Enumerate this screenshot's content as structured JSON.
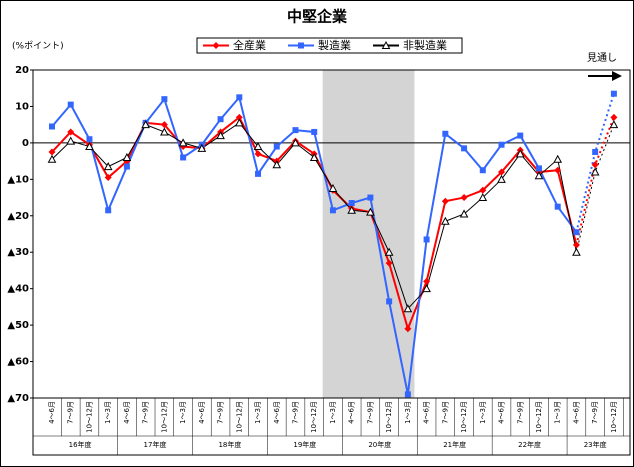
{
  "chart_data": {
    "type": "line",
    "title": "中堅企業",
    "y_label": "(%ポイント)",
    "annotation": "見通し",
    "categories": [
      "4～6月",
      "7～9月",
      "10～12月",
      "1～3月",
      "4～6月",
      "7～9月",
      "10～12月",
      "1～3月",
      "4～6月",
      "7～9月",
      "10～12月",
      "1～3月",
      "4～6月",
      "7～9月",
      "10～12月",
      "1～3月",
      "4～6月",
      "7～9月",
      "10～12月",
      "1～3月",
      "4～6月",
      "7～9月",
      "10～12月",
      "1～3月",
      "4～6月",
      "7～9月",
      "10～12月",
      "1～3月",
      "4～6月",
      "7～9月",
      "10～12月"
    ],
    "year_labels": [
      "16年度",
      "17年度",
      "18年度",
      "19年度",
      "20年度",
      "21年度",
      "22年度",
      "23年度"
    ],
    "series": [
      {
        "name": "全産業",
        "color": "#ff0000",
        "marker": "diamond",
        "values": [
          -2.5,
          3,
          -0.5,
          -9.5,
          -5,
          5.5,
          5,
          -1,
          -1.5,
          3,
          7,
          -3,
          -5,
          0.5,
          -3,
          -13,
          -18,
          -19,
          -33,
          -51,
          -38,
          -16,
          -15,
          -13,
          -8,
          -2,
          -8,
          -7.5,
          -28,
          -6,
          7
        ]
      },
      {
        "name": "製造業",
        "color": "#3366ff",
        "marker": "square",
        "values": [
          4.5,
          10.5,
          1,
          -18.5,
          -6.5,
          5.5,
          12,
          -4,
          -0.5,
          6.5,
          12.5,
          -8.5,
          -1,
          3.5,
          3,
          -18.5,
          -16.5,
          -15,
          -43.5,
          -69,
          -26.5,
          2.5,
          -1.5,
          -7.5,
          -0.5,
          2,
          -7,
          -17.5,
          -24.5,
          -2.5,
          13.5
        ]
      },
      {
        "name": "非製造業",
        "color": "#000000",
        "marker": "triangle",
        "values": [
          -4.5,
          0.5,
          -1,
          -6.5,
          -4,
          5,
          3,
          0,
          -1.5,
          2,
          5.5,
          -1,
          -6,
          0,
          -4,
          -12.5,
          -18.5,
          -19,
          -30,
          -45.5,
          -40,
          -21.5,
          -19.5,
          -15,
          -10,
          -3,
          -9,
          -4.5,
          -30,
          -8,
          5
        ]
      }
    ],
    "ylim": [
      -70,
      20
    ],
    "yticks": [
      20,
      10,
      0,
      {
        "value": -10,
        "label": "▲10"
      },
      {
        "value": -20,
        "label": "▲20"
      },
      {
        "value": -30,
        "label": "▲30"
      },
      {
        "value": -40,
        "label": "▲40"
      },
      {
        "value": -50,
        "label": "▲50"
      },
      {
        "value": -60,
        "label": "▲60"
      },
      {
        "value": -70,
        "label": "▲70"
      }
    ]
  }
}
